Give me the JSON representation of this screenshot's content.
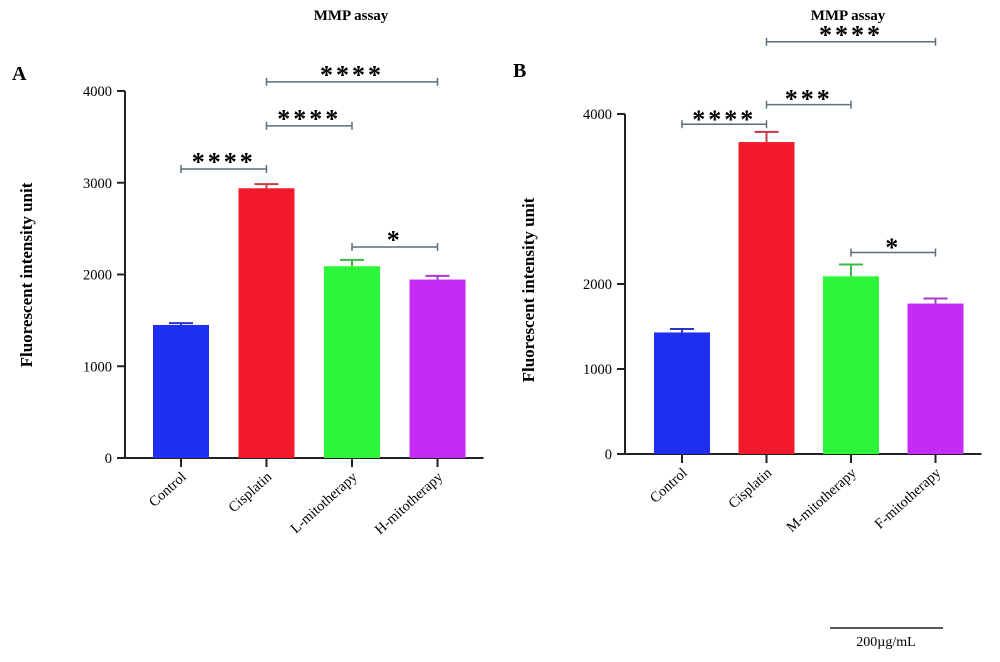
{
  "chart_data": [
    {
      "type": "bar",
      "panel_label": "A",
      "title": "MMP assay",
      "ylabel": "Fluorescent intensity unit",
      "ylim": [
        0,
        4000
      ],
      "yticks": [
        "0",
        "1000",
        "2000",
        "3000",
        "4000"
      ],
      "categories": [
        "Control",
        "Cisplatin",
        "L-mitotherapy",
        "H-mitotherapy"
      ],
      "values": [
        1450,
        2940,
        2090,
        1945
      ],
      "errors": [
        20,
        45,
        70,
        40
      ],
      "colors": [
        "#1f2ff2",
        "#f21a2a",
        "#2cf53a",
        "#c42cf5"
      ],
      "error_colors": [
        "#2a35c8",
        "#c43a4a",
        "#3cb845",
        "#a43cc8"
      ],
      "significance": [
        {
          "from": 0,
          "to": 1,
          "label": "****",
          "level": 3150,
          "label_level": 3330
        },
        {
          "from": 1,
          "to": 2,
          "label": "****",
          "level": 3620,
          "label_level": 3800
        },
        {
          "from": 1,
          "to": 3,
          "label": "****",
          "level": 4100,
          "label_level": 4280
        },
        {
          "from": 2,
          "to": 3,
          "label": "*",
          "level": 2300,
          "label_level": 2480
        }
      ]
    },
    {
      "type": "bar",
      "panel_label": "B",
      "title": "MMP assay",
      "ylabel": "Fluorescent intensity unit",
      "ylim": [
        0,
        4000
      ],
      "yticks": [
        "0",
        "1000",
        "2000",
        "4000"
      ],
      "ytick_values": [
        0,
        1000,
        2000,
        4000
      ],
      "categories": [
        "Control",
        "Cisplatin",
        "M-mitotherapy",
        "F-mitotherapy"
      ],
      "values": [
        1430,
        3670,
        2090,
        1770
      ],
      "errors": [
        40,
        120,
        140,
        60
      ],
      "colors": [
        "#1f2ff2",
        "#f21a2a",
        "#2cf53a",
        "#c42cf5"
      ],
      "error_colors": [
        "#2a35c8",
        "#c43a4a",
        "#3cb845",
        "#a43cc8"
      ],
      "significance": [
        {
          "from": 0,
          "to": 1,
          "label": "****",
          "level": 3880,
          "label_level": 4050
        },
        {
          "from": 1,
          "to": 2,
          "label": "***",
          "level": 4110,
          "label_level": 4290
        },
        {
          "from": 1,
          "to": 3,
          "label": "****",
          "level": 4850,
          "label_level": 5040
        },
        {
          "from": 2,
          "to": 3,
          "label": "*",
          "level": 2370,
          "label_level": 2540
        }
      ]
    }
  ],
  "scale_bar": {
    "label": "200µg/mL"
  }
}
